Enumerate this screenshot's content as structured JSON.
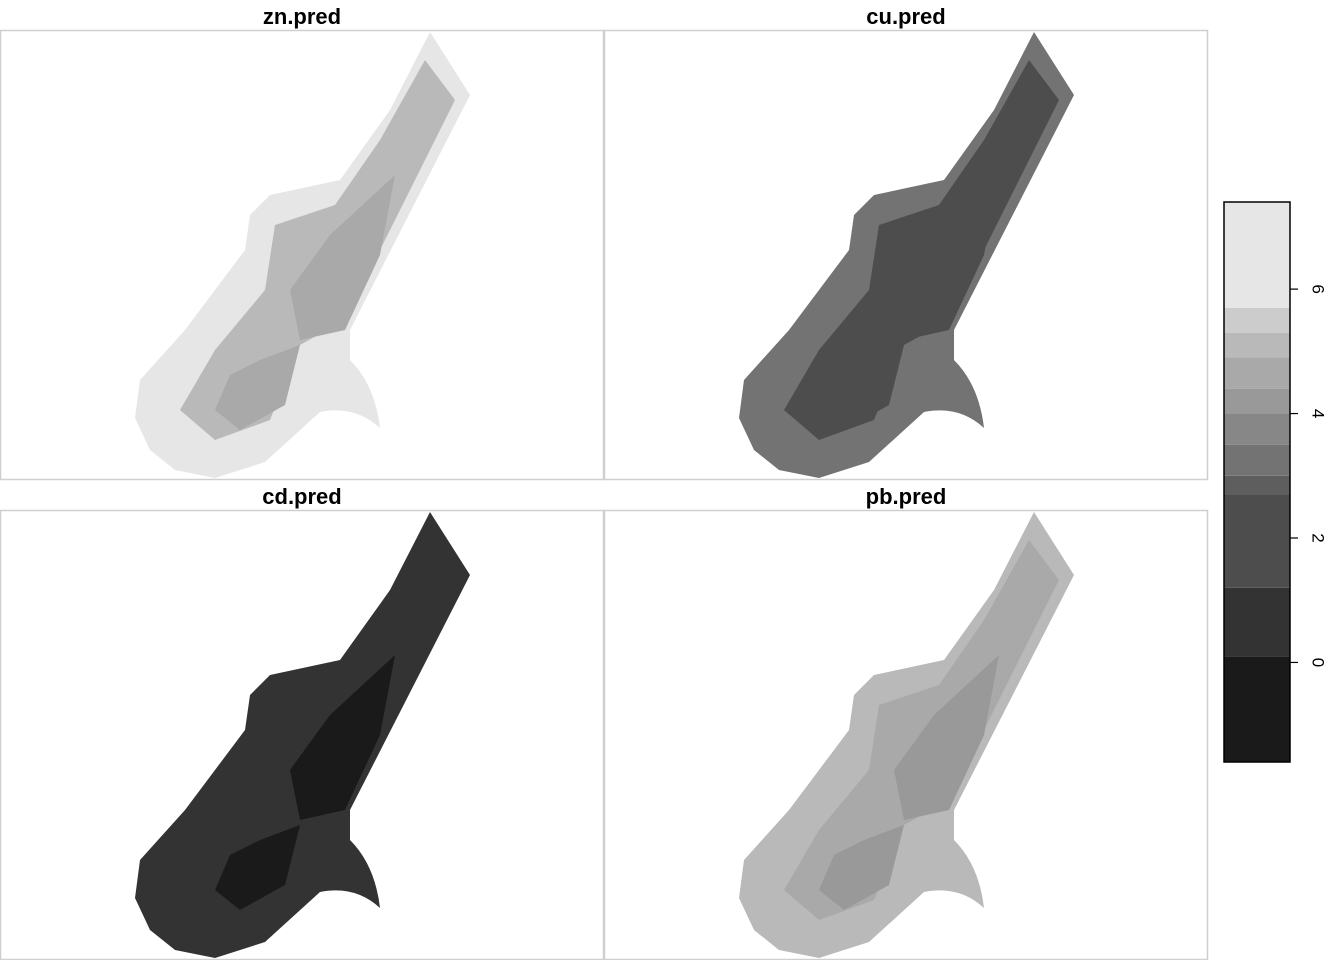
{
  "chart_data": {
    "type": "heatmap",
    "colorbar": {
      "range": [
        -1.6,
        7.4
      ],
      "tick_values": [
        0,
        2,
        4,
        6
      ],
      "tick_labels": [
        "0",
        "2",
        "4",
        "6"
      ],
      "breaks": [
        -1.6,
        0.1,
        1.2,
        2.7,
        3.0,
        3.5,
        4.0,
        4.4,
        4.9,
        5.3,
        5.7,
        7.4
      ],
      "colors": [
        "#1a1a1a",
        "#333333",
        "#4d4d4d",
        "#5e5e5e",
        "#737373",
        "#878787",
        "#999999",
        "#a9a9a9",
        "#b9b9b9",
        "#cccccc",
        "#e6e6e6"
      ]
    },
    "panels": [
      {
        "title": "zn.pred",
        "base": 5.7,
        "core": 4.9,
        "peak": 4.6
      },
      {
        "title": "cu.pred",
        "base": 3.2,
        "core": 2.6,
        "peak": 2.3
      },
      {
        "title": "cd.pred",
        "base": 1.0,
        "core": 0.3,
        "peak": -0.2
      },
      {
        "title": "pb.pred",
        "base": 5.0,
        "core": 4.5,
        "peak": 4.2
      }
    ]
  }
}
